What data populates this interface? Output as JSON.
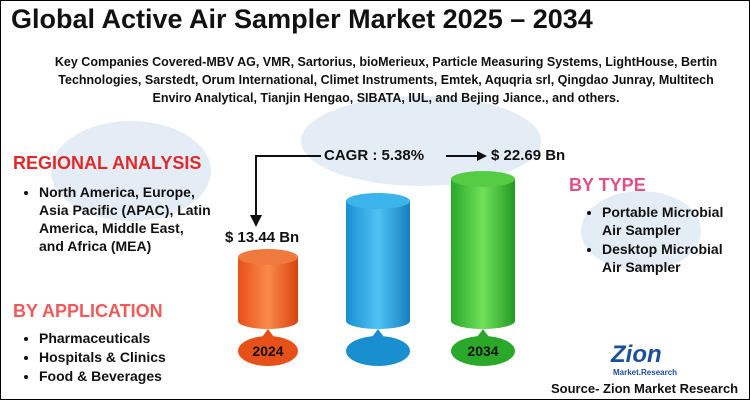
{
  "header": {
    "title": "Global Active Air Sampler Market 2025 – 2034"
  },
  "companies": "Key Companies Covered-MBV AG, VMR, Sartorius, bioMerieux, Particle Measuring Systems, LightHouse, Bertin Technologies, Sarstedt, Orum International, Climet Instruments, Emtek, Aquqria srl, Qingdao Junray, Multitech Enviro Analytical, Tianjin Hengao, SIBATA, IUL, and Bejing Jiance., and others.",
  "cagr": "CAGR : 5.38%",
  "market_values": {
    "start": "$ 13.44 Bn",
    "end": "$ 22.69 Bn"
  },
  "years": {
    "start": "2024",
    "end": "2034"
  },
  "regional": {
    "title": "REGIONAL ANALYSIS",
    "items": [
      "North America, Europe, Asia Pacific (APAC), Latin America, Middle East, and Africa (MEA)"
    ]
  },
  "application": {
    "title": "BY APPLICATION",
    "items": [
      "Pharmaceuticals",
      "Hospitals & Clinics",
      "Food & Beverages"
    ]
  },
  "by_type": {
    "title": "BY TYPE",
    "items": [
      "Portable Microbial Air Sampler",
      "Desktop Microbial Air Sampler"
    ]
  },
  "logo": {
    "name": "Zion",
    "sub": "Market.Research"
  },
  "source": "Source- Zion Market Research"
}
